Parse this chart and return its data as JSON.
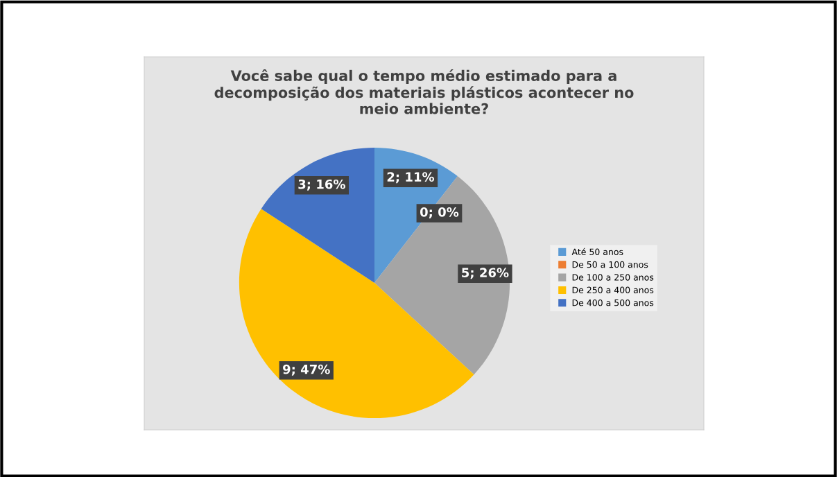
{
  "chart_data": {
    "type": "pie",
    "title": "Você sabe qual o tempo médio estimado para a\ndecomposição dos materiais plásticos acontecer no\nmeio ambiente?",
    "categories": [
      "Até 50 anos",
      "De 50 a 100 anos",
      "De 100 a 250 anos",
      "De 250 a 400 anos",
      "De 400 a 500 anos"
    ],
    "values": [
      2,
      0,
      5,
      9,
      3
    ],
    "colors": [
      "#5b9bd5",
      "#ed7d31",
      "#a5a5a5",
      "#ffc000",
      "#4472c4"
    ],
    "value_labels": [
      "2; 11%",
      "0; 0%",
      "5; 26%",
      "9; 47%",
      "3; 16%"
    ],
    "legend": "right"
  }
}
